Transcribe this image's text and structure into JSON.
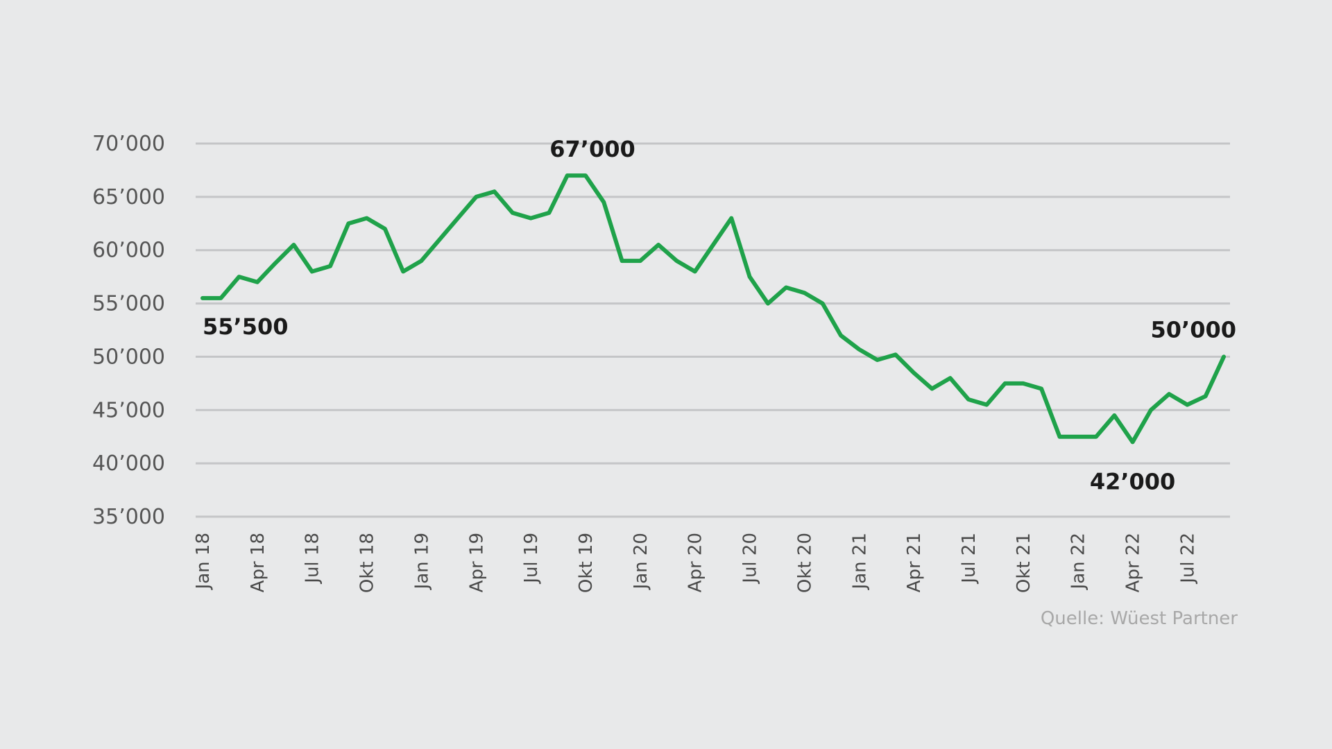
{
  "chart_data": {
    "type": "line",
    "ylim": [
      35000,
      70000
    ],
    "y_ticks": [
      {
        "value": 70000,
        "label": "70’000"
      },
      {
        "value": 65000,
        "label": "65’000"
      },
      {
        "value": 60000,
        "label": "60’000"
      },
      {
        "value": 55000,
        "label": "55’000"
      },
      {
        "value": 50000,
        "label": "50’000"
      },
      {
        "value": 45000,
        "label": "45’000"
      },
      {
        "value": 40000,
        "label": "40’000"
      },
      {
        "value": 35000,
        "label": "35’000"
      }
    ],
    "x_ticks": [
      {
        "index": 0,
        "label": "Jan 18"
      },
      {
        "index": 3,
        "label": "Apr 18"
      },
      {
        "index": 6,
        "label": "Jul 18"
      },
      {
        "index": 9,
        "label": "Okt 18"
      },
      {
        "index": 12,
        "label": "Jan 19"
      },
      {
        "index": 15,
        "label": "Apr 19"
      },
      {
        "index": 18,
        "label": "Jul 19"
      },
      {
        "index": 21,
        "label": "Okt 19"
      },
      {
        "index": 24,
        "label": "Jan 20"
      },
      {
        "index": 27,
        "label": "Apr 20"
      },
      {
        "index": 30,
        "label": "Jul 20"
      },
      {
        "index": 33,
        "label": "Okt 20"
      },
      {
        "index": 36,
        "label": "Jan 21"
      },
      {
        "index": 39,
        "label": "Apr 21"
      },
      {
        "index": 42,
        "label": "Jul 21"
      },
      {
        "index": 45,
        "label": "Okt 21"
      },
      {
        "index": 48,
        "label": "Jan 22"
      },
      {
        "index": 51,
        "label": "Apr 22"
      },
      {
        "index": 54,
        "label": "Jul 22"
      }
    ],
    "series": [
      {
        "color": "#1fa24a",
        "values": [
          55500,
          55500,
          57500,
          57000,
          58800,
          60500,
          58000,
          58500,
          62500,
          63000,
          62000,
          58000,
          59000,
          61000,
          63000,
          65000,
          65500,
          63500,
          63000,
          63500,
          67000,
          67000,
          64500,
          59000,
          59000,
          60500,
          59000,
          58000,
          60500,
          63000,
          57500,
          55000,
          56500,
          56000,
          55000,
          52000,
          50700,
          49700,
          50200,
          48500,
          47000,
          48000,
          46000,
          45500,
          47500,
          47500,
          47000,
          42500,
          42500,
          42500,
          44500,
          42000,
          45000,
          46500,
          45500,
          46300,
          50000
        ]
      }
    ],
    "annotations": [
      {
        "text": "55’500",
        "index": 0
      },
      {
        "text": "67’000",
        "index": 21
      },
      {
        "text": "42’000",
        "index": 51
      },
      {
        "text": "50’000",
        "index": 56
      }
    ],
    "grid": true,
    "legend": "none"
  },
  "source": "Quelle: Wüest Partner"
}
